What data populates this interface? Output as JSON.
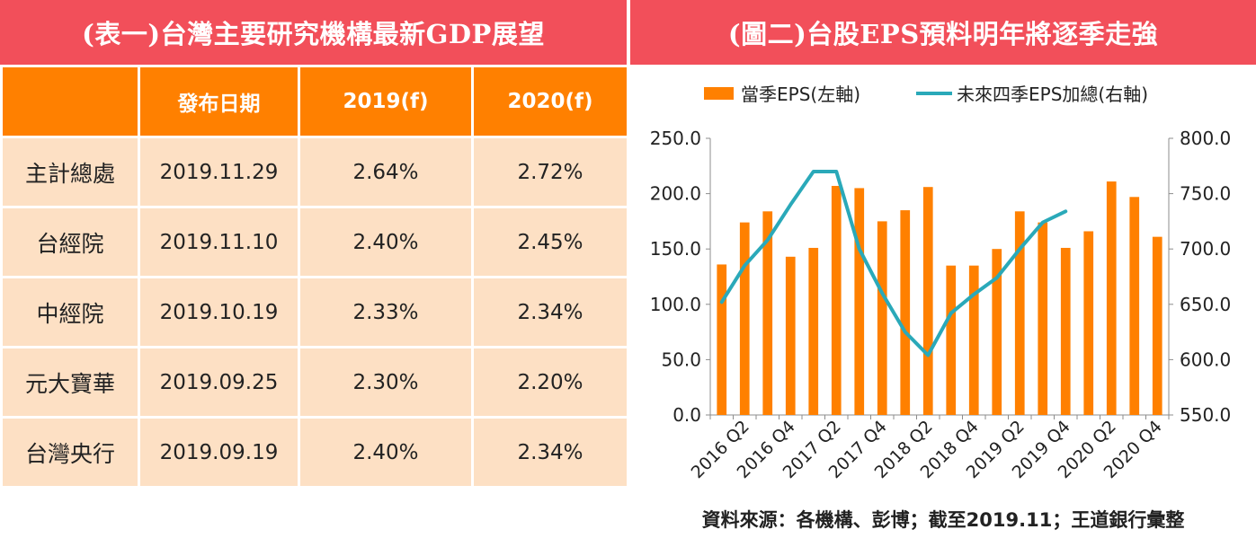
{
  "left_panel": {
    "title": "(表一)台灣主要研究機構最新GDP展望",
    "table": {
      "headers": [
        "",
        "發布日期",
        "2019(f)",
        "2020(f)"
      ],
      "rows": [
        {
          "institution": "主計總處",
          "date": "2019.11.29",
          "f2019": "2.64%",
          "f2020": "2.72%"
        },
        {
          "institution": "台經院",
          "date": "2019.11.10",
          "f2019": "2.40%",
          "f2020": "2.45%"
        },
        {
          "institution": "中經院",
          "date": "2019.10.19",
          "f2019": "2.33%",
          "f2020": "2.34%"
        },
        {
          "institution": "元大寶華",
          "date": "2019.09.25",
          "f2019": "2.30%",
          "f2020": "2.20%"
        },
        {
          "institution": "台灣央行",
          "date": "2019.09.19",
          "f2019": "2.40%",
          "f2020": "2.34%"
        }
      ]
    }
  },
  "right_panel": {
    "title": "(圖二)台股EPS預料明年將逐季走強",
    "source": "資料來源：各機構、彭博；截至2019.11；王道銀行彙整"
  },
  "colors": {
    "title_bar": "#f24f5a",
    "header_fill": "#ff8000",
    "cell_fill": "#fde0c4",
    "bar": "#ff8000",
    "line": "#2aa9b9"
  },
  "chart_data": {
    "type": "bar+line",
    "legend_position": "top",
    "grid": false,
    "categories": [
      "2016 Q1",
      "2016 Q2",
      "2016 Q3",
      "2016 Q4",
      "2017 Q1",
      "2017 Q2",
      "2017 Q3",
      "2017 Q4",
      "2018 Q1",
      "2018 Q2",
      "2018 Q3",
      "2018 Q4",
      "2019 Q1",
      "2019 Q2",
      "2019 Q3",
      "2019 Q4",
      "2020 Q1",
      "2020 Q2",
      "2020 Q3",
      "2020 Q4"
    ],
    "tick_labels": [
      "2016 Q2",
      "2016 Q4",
      "2017 Q2",
      "2017 Q4",
      "2018 Q2",
      "2018 Q4",
      "2019 Q2",
      "2019 Q4",
      "2020 Q2",
      "2020 Q4"
    ],
    "series": [
      {
        "name": "當季EPS(左軸)",
        "type": "bar",
        "axis": "left",
        "values": [
          136,
          174,
          184,
          143,
          151,
          207,
          205,
          175,
          185,
          206,
          135,
          135,
          150,
          184,
          174,
          151,
          166,
          211,
          197,
          161
        ]
      },
      {
        "name": "未來四季EPS加總(右軸)",
        "type": "line",
        "axis": "right",
        "values": [
          652,
          685,
          708,
          740,
          770,
          770,
          700,
          660,
          625,
          604,
          642,
          659,
          674,
          700,
          724,
          734,
          null,
          null,
          null,
          null
        ]
      }
    ],
    "y_left": {
      "min": 0,
      "max": 250,
      "ticks": [
        "0.0",
        "50.0",
        "100.0",
        "150.0",
        "200.0",
        "250.0"
      ]
    },
    "y_right": {
      "min": 550,
      "max": 800,
      "ticks": [
        "550.0",
        "600.0",
        "650.0",
        "700.0",
        "750.0",
        "800.0"
      ]
    }
  }
}
